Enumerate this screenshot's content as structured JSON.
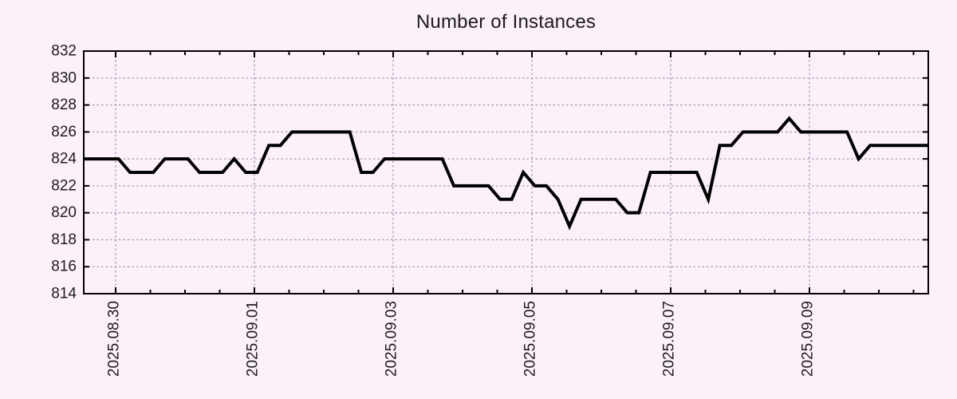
{
  "chart_data": {
    "type": "line",
    "title": "Number of Instances",
    "xlabel": "",
    "ylabel": "",
    "legend": "none",
    "grid": "dotted",
    "ylim": [
      814,
      832
    ],
    "y_ticks": [
      814,
      816,
      818,
      820,
      822,
      824,
      826,
      828,
      830,
      832
    ],
    "x_tick_labels": [
      "2025.08.30",
      "2025.09.01",
      "2025.09.03",
      "2025.09.05",
      "2025.09.07",
      "2025.09.09"
    ],
    "x_tick_day_offsets": [
      0,
      2,
      4,
      6,
      8,
      10
    ],
    "x_minor_tick_hours": 12,
    "x_axis_start": "2025-08-29 13:00",
    "x_axis_end": "2025-09-10 18:00",
    "sample_interval_hours": 4,
    "colors": {
      "background": "#fcf0fb",
      "line": "#000000",
      "grid": "#ab9bab",
      "axis": "#000000",
      "text": "#1c1c1c"
    },
    "points": [
      {
        "t": "2025-08-29 13:00",
        "v": 824
      },
      {
        "t": "2025-08-29 17:00",
        "v": 824
      },
      {
        "t": "2025-08-29 21:00",
        "v": 824
      },
      {
        "t": "2025-08-30 01:00",
        "v": 824
      },
      {
        "t": "2025-08-30 05:00",
        "v": 823
      },
      {
        "t": "2025-08-30 09:00",
        "v": 823
      },
      {
        "t": "2025-08-30 13:00",
        "v": 823
      },
      {
        "t": "2025-08-30 17:00",
        "v": 824
      },
      {
        "t": "2025-08-30 21:00",
        "v": 824
      },
      {
        "t": "2025-08-31 01:00",
        "v": 824
      },
      {
        "t": "2025-08-31 05:00",
        "v": 823
      },
      {
        "t": "2025-08-31 09:00",
        "v": 823
      },
      {
        "t": "2025-08-31 13:00",
        "v": 823
      },
      {
        "t": "2025-08-31 17:00",
        "v": 824
      },
      {
        "t": "2025-08-31 21:00",
        "v": 823
      },
      {
        "t": "2025-09-01 01:00",
        "v": 823
      },
      {
        "t": "2025-09-01 05:00",
        "v": 825
      },
      {
        "t": "2025-09-01 09:00",
        "v": 825
      },
      {
        "t": "2025-09-01 13:00",
        "v": 826
      },
      {
        "t": "2025-09-01 17:00",
        "v": 826
      },
      {
        "t": "2025-09-01 21:00",
        "v": 826
      },
      {
        "t": "2025-09-02 01:00",
        "v": 826
      },
      {
        "t": "2025-09-02 05:00",
        "v": 826
      },
      {
        "t": "2025-09-02 09:00",
        "v": 826
      },
      {
        "t": "2025-09-02 13:00",
        "v": 823
      },
      {
        "t": "2025-09-02 17:00",
        "v": 823
      },
      {
        "t": "2025-09-02 21:00",
        "v": 824
      },
      {
        "t": "2025-09-03 01:00",
        "v": 824
      },
      {
        "t": "2025-09-03 05:00",
        "v": 824
      },
      {
        "t": "2025-09-03 09:00",
        "v": 824
      },
      {
        "t": "2025-09-03 13:00",
        "v": 824
      },
      {
        "t": "2025-09-03 17:00",
        "v": 824
      },
      {
        "t": "2025-09-03 21:00",
        "v": 822
      },
      {
        "t": "2025-09-04 01:00",
        "v": 822
      },
      {
        "t": "2025-09-04 05:00",
        "v": 822
      },
      {
        "t": "2025-09-04 09:00",
        "v": 822
      },
      {
        "t": "2025-09-04 13:00",
        "v": 821
      },
      {
        "t": "2025-09-04 17:00",
        "v": 821
      },
      {
        "t": "2025-09-04 21:00",
        "v": 823
      },
      {
        "t": "2025-09-05 01:00",
        "v": 822
      },
      {
        "t": "2025-09-05 05:00",
        "v": 822
      },
      {
        "t": "2025-09-05 09:00",
        "v": 821
      },
      {
        "t": "2025-09-05 13:00",
        "v": 819
      },
      {
        "t": "2025-09-05 17:00",
        "v": 821
      },
      {
        "t": "2025-09-05 21:00",
        "v": 821
      },
      {
        "t": "2025-09-06 01:00",
        "v": 821
      },
      {
        "t": "2025-09-06 05:00",
        "v": 821
      },
      {
        "t": "2025-09-06 09:00",
        "v": 820
      },
      {
        "t": "2025-09-06 13:00",
        "v": 820
      },
      {
        "t": "2025-09-06 17:00",
        "v": 823
      },
      {
        "t": "2025-09-06 21:00",
        "v": 823
      },
      {
        "t": "2025-09-07 01:00",
        "v": 823
      },
      {
        "t": "2025-09-07 05:00",
        "v": 823
      },
      {
        "t": "2025-09-07 09:00",
        "v": 823
      },
      {
        "t": "2025-09-07 13:00",
        "v": 821
      },
      {
        "t": "2025-09-07 17:00",
        "v": 825
      },
      {
        "t": "2025-09-07 21:00",
        "v": 825
      },
      {
        "t": "2025-09-08 01:00",
        "v": 826
      },
      {
        "t": "2025-09-08 05:00",
        "v": 826
      },
      {
        "t": "2025-09-08 09:00",
        "v": 826
      },
      {
        "t": "2025-09-08 13:00",
        "v": 826
      },
      {
        "t": "2025-09-08 17:00",
        "v": 827
      },
      {
        "t": "2025-09-08 21:00",
        "v": 826
      },
      {
        "t": "2025-09-09 01:00",
        "v": 826
      },
      {
        "t": "2025-09-09 05:00",
        "v": 826
      },
      {
        "t": "2025-09-09 09:00",
        "v": 826
      },
      {
        "t": "2025-09-09 13:00",
        "v": 826
      },
      {
        "t": "2025-09-09 17:00",
        "v": 824
      },
      {
        "t": "2025-09-09 21:00",
        "v": 825
      },
      {
        "t": "2025-09-10 01:00",
        "v": 825
      },
      {
        "t": "2025-09-10 05:00",
        "v": 825
      },
      {
        "t": "2025-09-10 09:00",
        "v": 825
      },
      {
        "t": "2025-09-10 13:00",
        "v": 825
      },
      {
        "t": "2025-09-10 17:00",
        "v": 825
      },
      {
        "t": "2025-09-10 18:00",
        "v": 825
      }
    ]
  }
}
